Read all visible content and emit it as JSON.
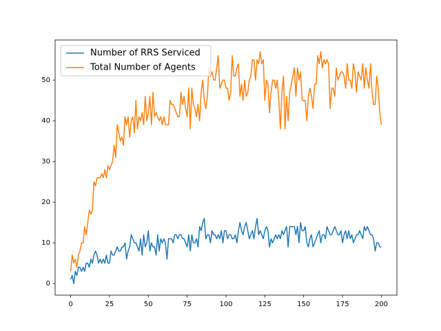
{
  "chart_data": {
    "type": "line",
    "x": [
      0,
      1,
      2,
      3,
      4,
      5,
      6,
      7,
      8,
      9,
      10,
      11,
      12,
      13,
      14,
      15,
      16,
      17,
      18,
      19,
      20,
      21,
      22,
      23,
      24,
      25,
      26,
      27,
      28,
      29,
      30,
      31,
      32,
      33,
      34,
      35,
      36,
      37,
      38,
      39,
      40,
      41,
      42,
      43,
      44,
      45,
      46,
      47,
      48,
      49,
      50,
      51,
      52,
      53,
      54,
      55,
      56,
      57,
      58,
      59,
      60,
      61,
      62,
      63,
      64,
      65,
      66,
      67,
      68,
      69,
      70,
      71,
      72,
      73,
      74,
      75,
      76,
      77,
      78,
      79,
      80,
      81,
      82,
      83,
      84,
      85,
      86,
      87,
      88,
      89,
      90,
      91,
      92,
      93,
      94,
      95,
      96,
      97,
      98,
      99,
      100,
      101,
      102,
      103,
      104,
      105,
      106,
      107,
      108,
      109,
      110,
      111,
      112,
      113,
      114,
      115,
      116,
      117,
      118,
      119,
      120,
      121,
      122,
      123,
      124,
      125,
      126,
      127,
      128,
      129,
      130,
      131,
      132,
      133,
      134,
      135,
      136,
      137,
      138,
      139,
      140,
      141,
      142,
      143,
      144,
      145,
      146,
      147,
      148,
      149,
      150,
      151,
      152,
      153,
      154,
      155,
      156,
      157,
      158,
      159,
      160,
      161,
      162,
      163,
      164,
      165,
      166,
      167,
      168,
      169,
      170,
      171,
      172,
      173,
      174,
      175,
      176,
      177,
      178,
      179,
      180,
      181,
      182,
      183,
      184,
      185,
      186,
      187,
      188,
      189,
      190,
      191,
      192,
      193,
      194,
      195,
      196,
      197,
      198,
      199,
      200
    ],
    "series": [
      {
        "name": "Number of RRS Serviced",
        "color": "#1f77b4",
        "values": [
          1,
          2,
          0,
          3,
          2,
          4,
          4,
          3,
          4,
          3,
          5,
          5,
          4,
          6,
          5,
          7,
          8,
          7,
          5,
          6,
          5,
          6,
          5,
          7,
          5,
          5,
          8,
          7,
          7,
          8,
          9,
          8,
          8,
          9,
          9,
          10,
          6,
          8,
          9,
          12,
          11,
          10,
          10,
          9,
          8,
          11,
          7,
          12,
          9,
          10,
          13,
          8,
          10,
          9,
          9,
          7,
          12,
          8,
          11,
          10,
          11,
          10,
          6,
          11,
          11,
          11,
          10,
          12,
          12,
          11,
          12,
          12,
          11,
          11,
          10,
          9,
          12,
          8,
          12,
          10,
          10,
          11,
          9,
          14,
          13,
          15,
          16,
          11,
          12,
          12,
          10,
          13,
          12,
          12,
          11,
          12,
          11,
          13,
          10,
          13,
          13,
          11,
          12,
          12,
          11,
          11,
          12,
          10,
          13,
          15,
          13,
          12,
          14,
          15,
          13,
          11,
          12,
          13,
          11,
          14,
          16,
          12,
          13,
          12,
          11,
          13,
          14,
          13,
          9,
          11,
          10,
          11,
          12,
          11,
          12,
          11,
          13,
          12,
          13,
          14,
          9,
          14,
          14,
          14,
          14,
          12,
          14,
          10,
          15,
          13,
          13,
          14,
          10,
          9,
          11,
          12,
          9,
          10,
          11,
          12,
          13,
          10,
          12,
          12,
          11,
          14,
          13,
          12,
          12,
          13,
          14,
          13,
          12,
          12,
          13,
          10,
          12,
          13,
          11,
          13,
          11,
          12,
          10,
          11,
          12,
          12,
          13,
          12,
          11,
          14,
          13,
          14,
          13,
          12,
          12,
          11,
          8,
          10,
          10,
          9,
          9
        ]
      },
      {
        "name": "Total Number of Agents",
        "color": "#ff7f0e",
        "values": [
          3,
          7,
          5,
          6,
          4,
          7,
          8,
          10,
          10,
          14,
          12,
          15,
          18,
          17,
          18,
          25,
          24,
          26,
          26,
          26,
          27,
          26,
          28,
          26,
          29,
          28,
          29,
          30,
          34,
          31,
          39,
          37,
          35,
          36,
          34,
          41,
          39,
          41,
          36,
          40,
          41,
          37,
          45,
          38,
          41,
          40,
          42,
          39,
          46,
          40,
          42,
          46,
          39,
          47,
          41,
          42,
          41,
          40,
          41,
          39,
          41,
          39,
          39,
          39,
          45,
          44,
          44,
          43,
          42,
          41,
          41,
          47,
          44,
          46,
          43,
          41,
          48,
          38,
          48,
          44,
          43,
          41,
          44,
          40,
          47,
          50,
          45,
          43,
          46,
          53,
          51,
          52,
          50,
          50,
          53,
          56,
          48,
          49,
          50,
          50,
          48,
          48,
          45,
          47,
          56,
          51,
          51,
          53,
          54,
          46,
          49,
          45,
          50,
          46,
          47,
          50,
          51,
          55,
          55,
          50,
          55,
          54,
          57,
          54,
          55,
          45,
          50,
          49,
          42,
          47,
          50,
          50,
          48,
          50,
          45,
          38,
          47,
          51,
          38,
          46,
          40,
          47,
          49,
          51,
          53,
          46,
          53,
          50,
          52,
          45,
          45,
          45,
          40,
          46,
          48,
          46,
          43,
          49,
          49,
          56,
          54,
          57,
          53,
          55,
          54,
          55,
          54,
          43,
          48,
          48,
          46,
          53,
          50,
          51,
          52,
          52,
          51,
          48,
          54,
          50,
          50,
          48,
          54,
          52,
          47,
          52,
          51,
          50,
          54,
          48,
          53,
          50,
          48,
          54,
          47,
          44,
          44,
          51,
          48,
          42,
          39
        ]
      }
    ],
    "xlim": [
      -10,
      210
    ],
    "xticks": [
      0,
      25,
      50,
      75,
      100,
      125,
      150,
      175,
      200
    ],
    "ylim": [
      -2.85,
      59.85
    ],
    "yticks": [
      0,
      10,
      20,
      30,
      40,
      50
    ],
    "legend": "upper left"
  }
}
